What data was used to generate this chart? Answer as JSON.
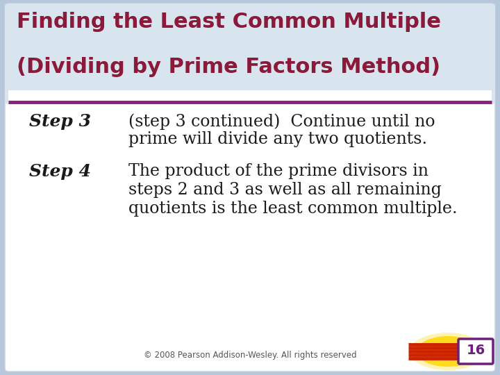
{
  "title_line1": "Finding the Least Common Multiple",
  "title_line2": "(Dividing by Prime Factors Method)",
  "title_color": "#8B1A3A",
  "separator_color": "#8B2080",
  "step3_label": "Step 3",
  "step3_text_line1": "(step 3 continued)  Continue until no",
  "step3_text_line2": "prime will divide any two quotients.",
  "step4_label": "Step 4",
  "step4_text_line1": "The product of the prime divisors in",
  "step4_text_line2": "steps 2 and 3 as well as all remaining",
  "step4_text_line3": "quotients is the least common multiple.",
  "footer_text": "© 2008 Pearson Addison-Wesley. All rights reserved",
  "footer_color": "#555555",
  "page_num": "16",
  "page_num_color": "#6B1E7A",
  "outer_border_color": "#B8C8DC",
  "title_bg_color": "#D8E4EE",
  "body_bg_color": "#FFFFFF",
  "step_label_color": "#1A1A1A",
  "body_text_color": "#1A1A1A",
  "stripe_color1": "#CC2200",
  "stripe_color2": "#DD3311"
}
